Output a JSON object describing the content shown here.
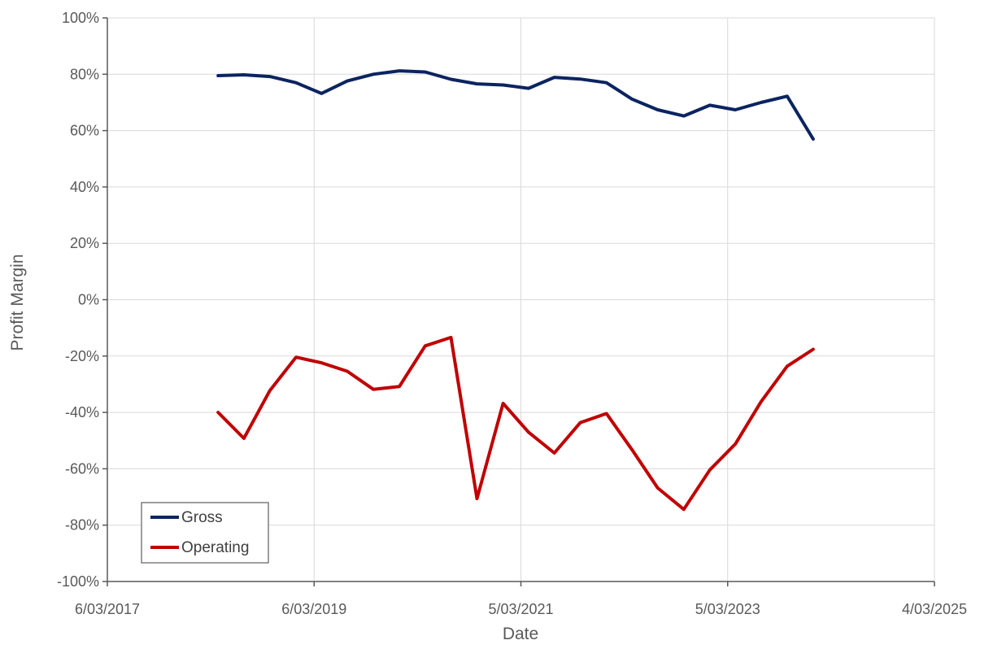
{
  "chart_data": {
    "type": "line",
    "title": "",
    "xlabel": "Date",
    "ylabel": "Profit Margin",
    "x_axis": {
      "scale": "date",
      "range": [
        "2017-03-06",
        "2025-03-04"
      ],
      "ticks": [
        {
          "date": "2017-03-06",
          "label": "6/03/2017"
        },
        {
          "date": "2019-03-06",
          "label": "6/03/2019"
        },
        {
          "date": "2021-03-05",
          "label": "5/03/2021"
        },
        {
          "date": "2023-03-05",
          "label": "5/03/2023"
        },
        {
          "date": "2025-03-04",
          "label": "4/03/2025"
        }
      ]
    },
    "y_axis": {
      "range": [
        -100,
        100
      ],
      "unit": "%",
      "ticks": [
        100,
        80,
        60,
        40,
        20,
        0,
        -20,
        -40,
        -60,
        -80,
        -100
      ],
      "tick_labels": [
        "100%",
        "80%",
        "60%",
        "40%",
        "20%",
        "0%",
        "-20%",
        "-40%",
        "-60%",
        "-80%",
        "-100%"
      ]
    },
    "grid": true,
    "legend": {
      "position": "bottom-left",
      "entries": [
        "Gross",
        "Operating"
      ]
    },
    "x": [
      "2018-04-01",
      "2018-07-01",
      "2018-10-01",
      "2019-01-01",
      "2019-04-01",
      "2019-07-01",
      "2019-10-01",
      "2020-01-01",
      "2020-04-01",
      "2020-07-01",
      "2020-10-01",
      "2021-01-01",
      "2021-04-01",
      "2021-07-01",
      "2021-10-01",
      "2022-01-01",
      "2022-04-01",
      "2022-07-01",
      "2022-10-01",
      "2023-01-01",
      "2023-04-01",
      "2023-07-01",
      "2023-10-01",
      "2024-01-01"
    ],
    "series": [
      {
        "name": "Gross",
        "color": "#0b2461",
        "values": [
          79.5,
          79.8,
          79.2,
          77.0,
          73.2,
          77.6,
          80.0,
          81.2,
          80.8,
          78.2,
          76.6,
          76.2,
          75.0,
          78.9,
          78.3,
          77.0,
          71.2,
          67.4,
          65.2,
          69.0,
          67.4,
          70.0,
          72.2,
          57.0
        ]
      },
      {
        "name": "Operating",
        "color": "#c00000",
        "values": [
          -40.0,
          -49.2,
          -32.2,
          -20.4,
          -22.4,
          -25.4,
          -31.8,
          -30.8,
          -16.4,
          -13.4,
          -70.6,
          -36.8,
          -47.0,
          -54.4,
          -43.6,
          -40.4,
          -53.2,
          -66.8,
          -74.4,
          -60.4,
          -51.2,
          -36.2,
          -23.6,
          -17.6
        ]
      }
    ]
  }
}
